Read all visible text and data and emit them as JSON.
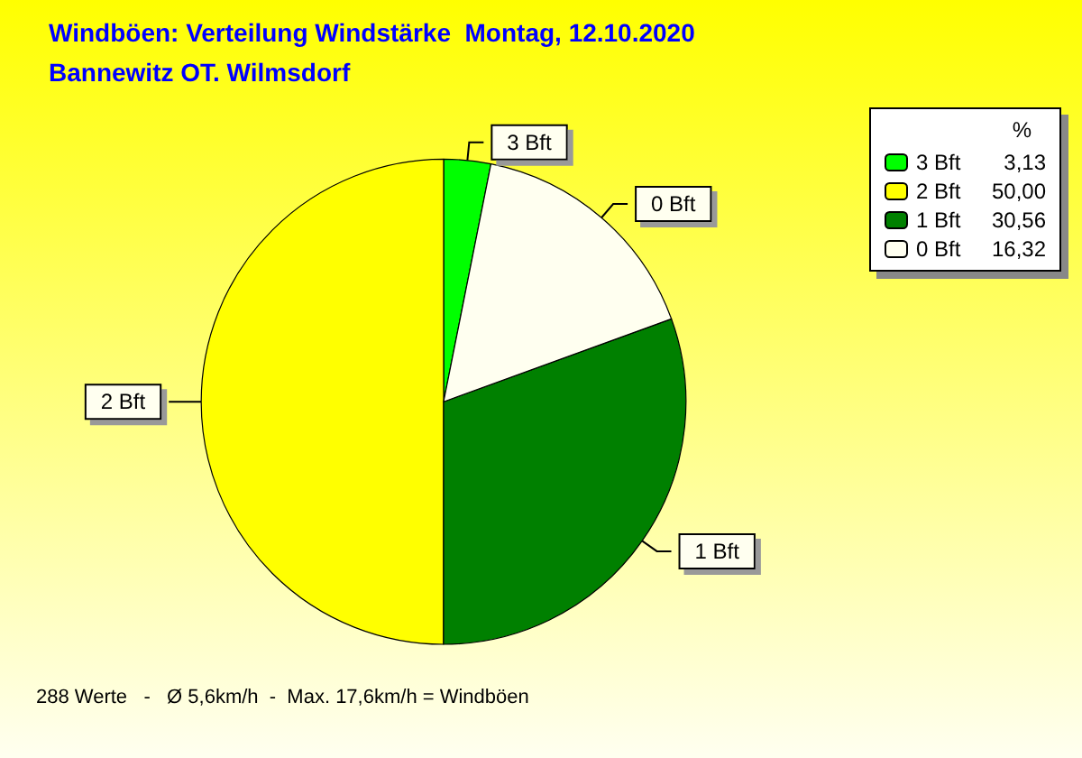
{
  "chart_data": {
    "type": "pie",
    "title": "Windböen: Verteilung Windstärke  Montag, 12.10.2020",
    "subtitle": "Bannewitz OT. Wilmsdorf",
    "categories": [
      "3 Bft",
      "2 Bft",
      "1 Bft",
      "0 Bft"
    ],
    "values": [
      3.13,
      50.0,
      30.56,
      16.32
    ],
    "value_labels": [
      "3,13",
      "50,00",
      "30,56",
      "16,32"
    ],
    "colors": [
      "#00ff00",
      "#ffff00",
      "#008000",
      "#fffff0"
    ],
    "legend": "top right",
    "legend_title": "%",
    "annotations": [
      "288 Werte   -   Ø 5,6km/h  -  Max. 17,6km/h = Windböen"
    ]
  }
}
